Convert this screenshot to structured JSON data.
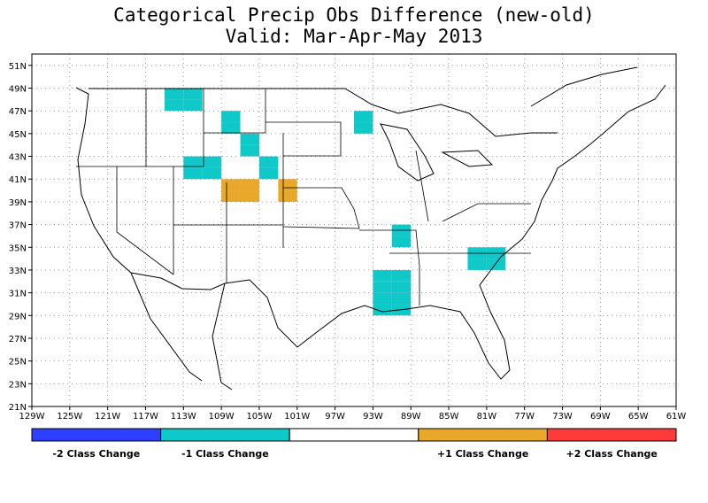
{
  "title": "Categorical Precip Obs Difference (new-old)",
  "subtitle": "Valid: Mar-Apr-May 2013",
  "map": {
    "lon_range": [
      -129,
      -61
    ],
    "lat_range": [
      21,
      52
    ],
    "lon_labels": [
      "129W",
      "125W",
      "121W",
      "117W",
      "113W",
      "109W",
      "105W",
      "101W",
      "97W",
      "93W",
      "89W",
      "85W",
      "81W",
      "77W",
      "73W",
      "69W",
      "65W",
      "61W"
    ],
    "lat_labels": [
      "21N",
      "23N",
      "25N",
      "27N",
      "29N",
      "31N",
      "33N",
      "35N",
      "37N",
      "39N",
      "41N",
      "43N",
      "45N",
      "47N",
      "49N",
      "51N"
    ],
    "grid": true
  },
  "legend": {
    "classes": [
      {
        "label": "-2 Class Change",
        "color": "#2f3fff"
      },
      {
        "label": "-1 Class Change",
        "color": "#0fc8c8"
      },
      {
        "label": "",
        "color": "#ffffff"
      },
      {
        "label": "+1 Class Change",
        "color": "#e8a82a"
      },
      {
        "label": "+2 Class Change",
        "color": "#ff3a3a"
      }
    ]
  },
  "cells": [
    {
      "lon": -115,
      "lat": 48,
      "class": -1
    },
    {
      "lon": -113,
      "lat": 48,
      "class": -1
    },
    {
      "lon": -115,
      "lat": 47,
      "class": -1
    },
    {
      "lon": -113,
      "lat": 47,
      "class": -1
    },
    {
      "lon": -109,
      "lat": 46,
      "class": -1
    },
    {
      "lon": -109,
      "lat": 45,
      "class": -1
    },
    {
      "lon": -107,
      "lat": 44,
      "class": -1
    },
    {
      "lon": -107,
      "lat": 43,
      "class": -1
    },
    {
      "lon": -113,
      "lat": 42,
      "class": -1
    },
    {
      "lon": -111,
      "lat": 42,
      "class": -1
    },
    {
      "lon": -113,
      "lat": 41,
      "class": -1
    },
    {
      "lon": -111,
      "lat": 41,
      "class": -1
    },
    {
      "lon": -105,
      "lat": 42,
      "class": -1
    },
    {
      "lon": -105,
      "lat": 41,
      "class": -1
    },
    {
      "lon": -109,
      "lat": 40,
      "class": 1
    },
    {
      "lon": -107,
      "lat": 40,
      "class": 1
    },
    {
      "lon": -109,
      "lat": 39,
      "class": 1
    },
    {
      "lon": -107,
      "lat": 39,
      "class": 1
    },
    {
      "lon": -103,
      "lat": 40,
      "class": 1
    },
    {
      "lon": -103,
      "lat": 39,
      "class": 1
    },
    {
      "lon": -95,
      "lat": 46,
      "class": -1
    },
    {
      "lon": -95,
      "lat": 45,
      "class": -1
    },
    {
      "lon": -91,
      "lat": 36,
      "class": -1
    },
    {
      "lon": -91,
      "lat": 35,
      "class": -1
    },
    {
      "lon": -93,
      "lat": 32,
      "class": -1
    },
    {
      "lon": -91,
      "lat": 32,
      "class": -1
    },
    {
      "lon": -93,
      "lat": 31,
      "class": -1
    },
    {
      "lon": -91,
      "lat": 31,
      "class": -1
    },
    {
      "lon": -93,
      "lat": 30,
      "class": -1
    },
    {
      "lon": -91,
      "lat": 30,
      "class": -1
    },
    {
      "lon": -93,
      "lat": 29,
      "class": -1
    },
    {
      "lon": -91,
      "lat": 29,
      "class": -1
    },
    {
      "lon": -83,
      "lat": 34,
      "class": -1
    },
    {
      "lon": -81,
      "lat": 34,
      "class": -1
    },
    {
      "lon": -83,
      "lat": 33,
      "class": -1
    },
    {
      "lon": -81,
      "lat": 33,
      "class": -1
    }
  ]
}
